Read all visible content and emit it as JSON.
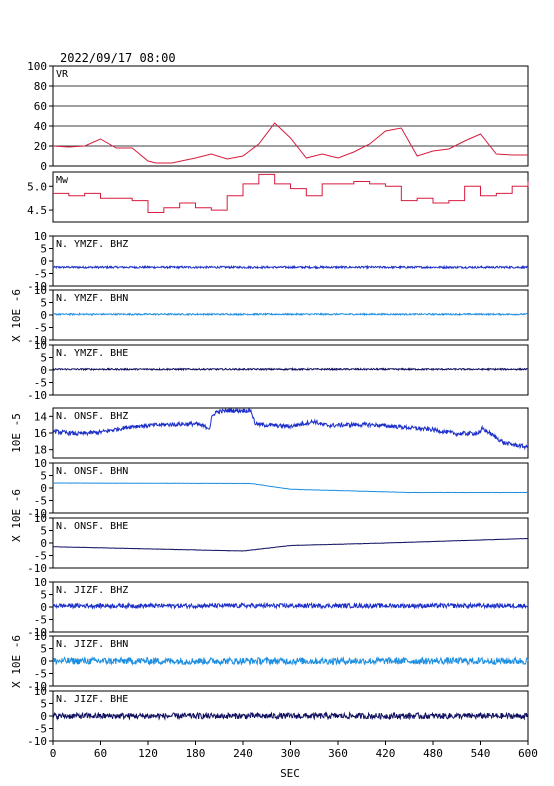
{
  "title": "2022/09/17 08:00",
  "xlabel": "SEC",
  "x_ticks": [
    0,
    60,
    120,
    180,
    240,
    300,
    360,
    420,
    480,
    540,
    600
  ],
  "colors": {
    "vr": "#d81b3e",
    "mw": "#d81b3e",
    "bhz": "#1c2fc8",
    "bhn": "#1e8fe0",
    "bhe": "#101060"
  },
  "chart_data": [
    {
      "type": "line",
      "label": "VR",
      "ylim": [
        0,
        100
      ],
      "y_ticks": [
        0,
        20,
        40,
        60,
        80,
        100
      ],
      "grid": true,
      "color_key": "vr",
      "x": [
        0,
        20,
        40,
        60,
        80,
        100,
        120,
        130,
        150,
        180,
        200,
        220,
        240,
        260,
        280,
        300,
        320,
        340,
        360,
        380,
        400,
        420,
        440,
        460,
        480,
        500,
        520,
        540,
        560,
        580,
        600
      ],
      "y": [
        20,
        19,
        20,
        27,
        18,
        18,
        5,
        3,
        3,
        8,
        12,
        7,
        10,
        22,
        43,
        28,
        8,
        12,
        8,
        14,
        22,
        35,
        38,
        10,
        15,
        17,
        25,
        32,
        12,
        11,
        11
      ]
    },
    {
      "type": "line",
      "label": "Mw",
      "ylim": [
        4.25,
        5.3
      ],
      "y_ticks": [
        4.5,
        5.0
      ],
      "y_tick_labels": [
        "4.5",
        "5.0"
      ],
      "grid": false,
      "color_key": "mw",
      "x": [
        0,
        20,
        40,
        60,
        80,
        100,
        120,
        140,
        160,
        180,
        200,
        220,
        240,
        260,
        280,
        300,
        320,
        340,
        360,
        380,
        400,
        420,
        440,
        460,
        480,
        500,
        520,
        540,
        560,
        580,
        600
      ],
      "y": [
        4.85,
        4.8,
        4.85,
        4.75,
        4.75,
        4.7,
        4.45,
        4.55,
        4.65,
        4.55,
        4.5,
        4.8,
        5.05,
        5.25,
        5.05,
        4.95,
        4.8,
        5.05,
        5.05,
        5.1,
        5.05,
        5.0,
        4.7,
        4.75,
        4.65,
        4.7,
        5.0,
        4.8,
        4.85,
        5.0,
        5.1
      ]
    },
    {
      "type": "line",
      "label": "N. YMZF. BHZ",
      "ylim": [
        -10,
        10
      ],
      "y_ticks": [
        -10,
        -5,
        0,
        5,
        10
      ],
      "grid": false,
      "color_key": "bhz",
      "x": [
        0,
        600
      ],
      "y": [
        -2.5,
        -2.5
      ],
      "noise_amplitude": 0.4
    },
    {
      "type": "line",
      "label": "N. YMZF. BHN",
      "ylim": [
        -10,
        10
      ],
      "y_ticks": [
        -10,
        -5,
        0,
        5,
        10
      ],
      "grid": false,
      "color_key": "bhn",
      "x": [
        0,
        600
      ],
      "y": [
        0.3,
        0.3
      ],
      "noise_amplitude": 0.3
    },
    {
      "type": "line",
      "label": "N. YMZF. BHE",
      "ylim": [
        -10,
        10
      ],
      "y_ticks": [
        -10,
        -5,
        0,
        5,
        10
      ],
      "grid": false,
      "color_key": "bhe",
      "x": [
        0,
        600
      ],
      "y": [
        0.3,
        0.3
      ],
      "noise_amplitude": 0.3
    },
    {
      "type": "line",
      "label": "N. ONSF. BHZ",
      "ylim": [
        -19,
        -13
      ],
      "axis_label": "10E -5",
      "y_ticks": [
        -18,
        -16,
        -14
      ],
      "y_tick_labels": [
        "18",
        "16",
        "14"
      ],
      "grid": false,
      "color_key": "bhz",
      "x": [
        0,
        30,
        60,
        100,
        140,
        180,
        198,
        200,
        205,
        220,
        250,
        255,
        260,
        300,
        330,
        340,
        350,
        380,
        400,
        430,
        480,
        510,
        540,
        542,
        545,
        570,
        600
      ],
      "y": [
        -15.8,
        -16.1,
        -15.9,
        -15.2,
        -15.0,
        -14.9,
        -15.4,
        -14.3,
        -13.5,
        -13.3,
        -13.3,
        -14.8,
        -15.0,
        -15.2,
        -14.6,
        -15.0,
        -15.1,
        -15.0,
        -15.0,
        -15.2,
        -15.6,
        -16.1,
        -16.0,
        -15.4,
        -15.6,
        -17.2,
        -17.7
      ],
      "noise_amplitude": 0.25
    },
    {
      "type": "line",
      "label": "N. ONSF. BHN",
      "ylim": [
        -10,
        10
      ],
      "y_ticks": [
        -10,
        -5,
        0,
        5,
        10
      ],
      "grid": false,
      "color_key": "bhn",
      "x": [
        0,
        250,
        300,
        450,
        600
      ],
      "y": [
        2.0,
        1.8,
        -0.5,
        -1.8,
        -1.8
      ],
      "noise_amplitude": 0.05
    },
    {
      "type": "line",
      "label": "N. ONSF. BHE",
      "ylim": [
        -10,
        10
      ],
      "y_ticks": [
        -10,
        -5,
        0,
        5,
        10
      ],
      "grid": false,
      "color_key": "bhe",
      "x": [
        0,
        240,
        300,
        420,
        600
      ],
      "y": [
        -1.5,
        -3.2,
        -1.0,
        0.0,
        1.8
      ],
      "noise_amplitude": 0.05
    },
    {
      "type": "line",
      "label": "N. JIZF. BHZ",
      "ylim": [
        -10,
        10
      ],
      "y_ticks": [
        -10,
        -5,
        0,
        5,
        10
      ],
      "grid": false,
      "color_key": "bhz",
      "x": [
        0,
        600
      ],
      "y": [
        0.5,
        0.5
      ],
      "noise_amplitude": 0.9
    },
    {
      "type": "line",
      "label": "N. JIZF. BHN",
      "ylim": [
        -10,
        10
      ],
      "y_ticks": [
        -10,
        -5,
        0,
        5,
        10
      ],
      "grid": false,
      "color_key": "bhn",
      "x": [
        0,
        600
      ],
      "y": [
        0.0,
        0.0
      ],
      "noise_amplitude": 1.4
    },
    {
      "type": "line",
      "label": "N. JIZF. BHE",
      "ylim": [
        -10,
        10
      ],
      "y_ticks": [
        -10,
        -5,
        0,
        5,
        10
      ],
      "grid": false,
      "color_key": "bhe",
      "x": [
        0,
        600
      ],
      "y": [
        0.0,
        0.0
      ],
      "noise_amplitude": 1.2
    }
  ],
  "y_axis_groups": [
    {
      "text": "X 10E -6",
      "panels": [
        2,
        3,
        4
      ]
    },
    {
      "text": "X 10E -6",
      "panels": [
        6,
        7
      ]
    },
    {
      "text": "X 10E -6",
      "panels": [
        8,
        9,
        10
      ]
    }
  ]
}
